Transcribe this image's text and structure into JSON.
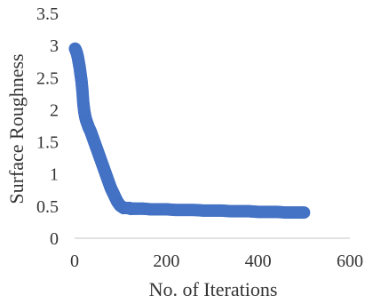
{
  "chart_data": {
    "type": "scatter",
    "title": "",
    "xlabel": "No. of Iterations",
    "ylabel": "Surface Roughness",
    "xlim": [
      0,
      600
    ],
    "ylim": [
      0,
      3.5
    ],
    "x_ticks": [
      "0",
      "200",
      "400",
      "600"
    ],
    "y_ticks": [
      "0",
      "0.5",
      "1",
      "1.5",
      "2",
      "2.5",
      "3",
      "3.5"
    ],
    "grid": false,
    "legend": "none",
    "marker_color": "#4472C4",
    "series": [
      {
        "x": [
          1,
          3,
          5,
          7,
          9,
          11,
          13,
          15,
          17,
          19,
          21,
          23,
          25,
          27,
          29,
          31,
          33,
          35,
          37,
          39,
          41,
          43,
          45,
          47,
          49,
          51,
          53,
          55,
          57,
          59,
          61,
          63,
          65,
          67,
          69,
          71,
          73,
          75,
          77,
          79,
          81,
          83,
          85,
          87,
          89,
          91,
          93,
          95,
          97,
          99,
          101,
          103,
          105,
          107,
          109,
          111,
          113,
          115,
          117,
          119,
          121,
          125,
          135,
          150,
          165,
          180,
          200,
          220,
          240,
          260,
          280,
          300,
          320,
          340,
          360,
          380,
          400,
          420,
          440,
          460,
          480,
          500
        ],
        "y": [
          2.95,
          2.92,
          2.88,
          2.82,
          2.74,
          2.66,
          2.55,
          2.45,
          2.3,
          2.1,
          1.98,
          1.9,
          1.84,
          1.8,
          1.76,
          1.72,
          1.69,
          1.66,
          1.62,
          1.58,
          1.54,
          1.5,
          1.46,
          1.42,
          1.38,
          1.34,
          1.3,
          1.26,
          1.22,
          1.18,
          1.14,
          1.1,
          1.06,
          1.02,
          0.98,
          0.94,
          0.9,
          0.86,
          0.82,
          0.78,
          0.75,
          0.72,
          0.69,
          0.66,
          0.63,
          0.6,
          0.57,
          0.55,
          0.53,
          0.51,
          0.5,
          0.49,
          0.48,
          0.47,
          0.47,
          0.47,
          0.47,
          0.47,
          0.47,
          0.47,
          0.46,
          0.46,
          0.46,
          0.46,
          0.45,
          0.45,
          0.45,
          0.44,
          0.44,
          0.44,
          0.43,
          0.43,
          0.43,
          0.42,
          0.42,
          0.42,
          0.41,
          0.41,
          0.41,
          0.4,
          0.4,
          0.4
        ]
      }
    ]
  }
}
